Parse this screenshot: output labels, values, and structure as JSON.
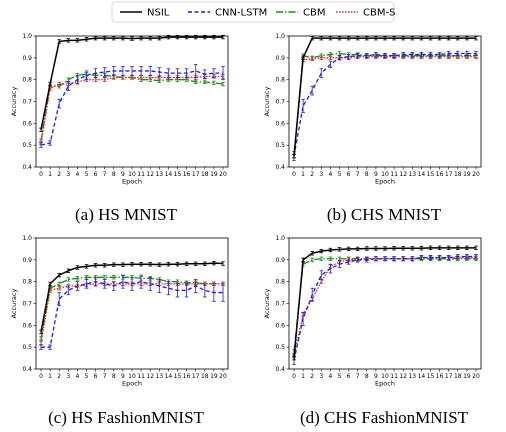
{
  "legend": [
    {
      "label": "NSIL",
      "color": "#000000",
      "dash": ""
    },
    {
      "label": "CNN-LSTM",
      "color": "#1f1fd6",
      "dash": "4,2.5"
    },
    {
      "label": "CBM",
      "color": "#1a8a1a",
      "dash": "7,2,1.5,2"
    },
    {
      "label": "CBM-S",
      "color": "#d62728",
      "dash": "1.5,1.5"
    }
  ],
  "chart_data": [
    {
      "type": "line",
      "caption": "(a) HS MNIST",
      "xlabel": "Epoch",
      "ylabel": "Accuracy",
      "x": [
        0,
        1,
        2,
        3,
        4,
        5,
        6,
        7,
        8,
        9,
        10,
        11,
        12,
        13,
        14,
        15,
        16,
        17,
        18,
        19,
        20
      ],
      "ylim": [
        0.4,
        1.0
      ],
      "yticks": [
        "0.4",
        "0.5",
        "0.6",
        "0.7",
        "0.8",
        "0.9",
        "1.0"
      ],
      "series": [
        {
          "name": "NSIL",
          "values": [
            0.57,
            0.78,
            0.975,
            0.98,
            0.98,
            0.985,
            0.99,
            0.99,
            0.99,
            0.99,
            0.988,
            0.99,
            0.99,
            0.99,
            0.995,
            0.995,
            0.995,
            0.995,
            0.995,
            0.995,
            0.995
          ]
        },
        {
          "name": "CNN-LSTM",
          "values": [
            0.5,
            0.51,
            0.69,
            0.77,
            0.8,
            0.82,
            0.83,
            0.835,
            0.84,
            0.84,
            0.84,
            0.84,
            0.84,
            0.835,
            0.83,
            0.83,
            0.83,
            0.84,
            0.825,
            0.83,
            0.83
          ],
          "err": [
            0.01,
            0.01,
            0.02,
            0.02,
            0.02,
            0.02,
            0.02,
            0.02,
            0.02,
            0.02,
            0.02,
            0.02,
            0.02,
            0.02,
            0.02,
            0.02,
            0.02,
            0.03,
            0.02,
            0.02,
            0.03
          ]
        },
        {
          "name": "CBM",
          "values": [
            0.52,
            0.77,
            0.77,
            0.8,
            0.82,
            0.825,
            0.82,
            0.82,
            0.815,
            0.81,
            0.81,
            0.8,
            0.8,
            0.795,
            0.8,
            0.8,
            0.8,
            0.79,
            0.79,
            0.785,
            0.78
          ]
        },
        {
          "name": "CBM-S",
          "values": [
            0.51,
            0.76,
            0.78,
            0.78,
            0.79,
            0.8,
            0.8,
            0.8,
            0.81,
            0.81,
            0.81,
            0.81,
            0.81,
            0.81,
            0.81,
            0.81,
            0.81,
            0.81,
            0.815,
            0.815,
            0.815
          ]
        }
      ]
    },
    {
      "type": "line",
      "caption": "(b) CHS MNIST",
      "xlabel": "Epoch",
      "ylabel": "Accuracy",
      "x": [
        0,
        1,
        2,
        3,
        4,
        5,
        6,
        7,
        8,
        9,
        10,
        11,
        12,
        13,
        14,
        15,
        16,
        17,
        18,
        19,
        20
      ],
      "ylim": [
        0.4,
        1.0
      ],
      "yticks": [
        "0.4",
        "0.5",
        "0.6",
        "0.7",
        "0.8",
        "0.9",
        "1.0"
      ],
      "series": [
        {
          "name": "NSIL",
          "values": [
            0.45,
            0.9,
            0.99,
            0.99,
            0.99,
            0.99,
            0.99,
            0.99,
            0.99,
            0.99,
            0.99,
            0.99,
            0.99,
            0.99,
            0.99,
            0.99,
            0.99,
            0.99,
            0.99,
            0.99,
            0.99
          ]
        },
        {
          "name": "CNN-LSTM",
          "values": [
            0.45,
            0.68,
            0.75,
            0.83,
            0.87,
            0.9,
            0.905,
            0.91,
            0.91,
            0.915,
            0.91,
            0.91,
            0.915,
            0.915,
            0.915,
            0.915,
            0.915,
            0.92,
            0.92,
            0.92,
            0.92
          ],
          "err": [
            0.02,
            0.03,
            0.02,
            0.02,
            0.015,
            0.01,
            0.01,
            0.01,
            0.01,
            0.01,
            0.01,
            0.01,
            0.01,
            0.01,
            0.01,
            0.01,
            0.01,
            0.01,
            0.01,
            0.01,
            0.01
          ]
        },
        {
          "name": "CBM",
          "values": [
            0.45,
            0.91,
            0.9,
            0.91,
            0.915,
            0.92,
            0.915,
            0.915,
            0.91,
            0.91,
            0.91,
            0.91,
            0.91,
            0.91,
            0.91,
            0.91,
            0.91,
            0.91,
            0.91,
            0.91,
            0.91
          ]
        },
        {
          "name": "CBM-S",
          "values": [
            0.45,
            0.89,
            0.895,
            0.9,
            0.9,
            0.9,
            0.9,
            0.905,
            0.905,
            0.905,
            0.905,
            0.905,
            0.905,
            0.905,
            0.905,
            0.905,
            0.905,
            0.905,
            0.905,
            0.905,
            0.905
          ]
        }
      ]
    },
    {
      "type": "line",
      "caption": "(c) HS FashionMNIST",
      "xlabel": "Epoch",
      "ylabel": "Accuracy",
      "x": [
        0,
        1,
        2,
        3,
        4,
        5,
        6,
        7,
        8,
        9,
        10,
        11,
        12,
        13,
        14,
        15,
        16,
        17,
        18,
        19,
        20
      ],
      "ylim": [
        0.4,
        1.0
      ],
      "yticks": [
        "0.4",
        "0.5",
        "0.6",
        "0.7",
        "0.8",
        "0.9",
        "1.0"
      ],
      "series": [
        {
          "name": "NSIL",
          "values": [
            0.57,
            0.79,
            0.83,
            0.85,
            0.865,
            0.87,
            0.875,
            0.875,
            0.878,
            0.878,
            0.88,
            0.88,
            0.88,
            0.878,
            0.88,
            0.88,
            0.882,
            0.882,
            0.882,
            0.885,
            0.883
          ]
        },
        {
          "name": "CNN-LSTM",
          "values": [
            0.5,
            0.5,
            0.72,
            0.76,
            0.78,
            0.79,
            0.8,
            0.79,
            0.78,
            0.8,
            0.79,
            0.8,
            0.79,
            0.78,
            0.77,
            0.76,
            0.76,
            0.78,
            0.76,
            0.75,
            0.75
          ],
          "err": [
            0.01,
            0.01,
            0.03,
            0.02,
            0.02,
            0.02,
            0.02,
            0.02,
            0.02,
            0.03,
            0.03,
            0.03,
            0.03,
            0.03,
            0.03,
            0.03,
            0.03,
            0.03,
            0.03,
            0.04,
            0.04
          ]
        },
        {
          "name": "CBM",
          "values": [
            0.54,
            0.77,
            0.79,
            0.81,
            0.815,
            0.82,
            0.82,
            0.82,
            0.82,
            0.82,
            0.82,
            0.815,
            0.815,
            0.81,
            0.8,
            0.8,
            0.795,
            0.795,
            0.79,
            0.79,
            0.79
          ]
        },
        {
          "name": "CBM-S",
          "values": [
            0.52,
            0.76,
            0.77,
            0.78,
            0.78,
            0.785,
            0.79,
            0.79,
            0.79,
            0.79,
            0.79,
            0.79,
            0.79,
            0.79,
            0.79,
            0.79,
            0.79,
            0.79,
            0.79,
            0.79,
            0.79
          ]
        }
      ]
    },
    {
      "type": "line",
      "caption": "(d) CHS FashionMNIST",
      "xlabel": "Epoch",
      "ylabel": "Accuracy",
      "x": [
        0,
        1,
        2,
        3,
        4,
        5,
        6,
        7,
        8,
        9,
        10,
        11,
        12,
        13,
        14,
        15,
        16,
        17,
        18,
        19,
        20
      ],
      "ylim": [
        0.4,
        1.0
      ],
      "yticks": [
        "0.4",
        "0.5",
        "0.6",
        "0.7",
        "0.8",
        "0.9",
        "1.0"
      ],
      "series": [
        {
          "name": "NSIL",
          "values": [
            0.45,
            0.9,
            0.93,
            0.94,
            0.945,
            0.948,
            0.95,
            0.95,
            0.952,
            0.952,
            0.952,
            0.953,
            0.953,
            0.953,
            0.953,
            0.955,
            0.955,
            0.955,
            0.955,
            0.955,
            0.955
          ]
        },
        {
          "name": "CNN-LSTM",
          "values": [
            0.44,
            0.63,
            0.74,
            0.83,
            0.86,
            0.88,
            0.89,
            0.9,
            0.9,
            0.905,
            0.905,
            0.905,
            0.905,
            0.905,
            0.91,
            0.91,
            0.91,
            0.91,
            0.915,
            0.915,
            0.915
          ],
          "err": [
            0.02,
            0.03,
            0.03,
            0.02,
            0.02,
            0.015,
            0.01,
            0.01,
            0.01,
            0.01,
            0.01,
            0.01,
            0.01,
            0.01,
            0.01,
            0.01,
            0.01,
            0.01,
            0.01,
            0.01,
            0.01
          ]
        },
        {
          "name": "CBM",
          "values": [
            0.48,
            0.88,
            0.9,
            0.905,
            0.905,
            0.905,
            0.905,
            0.905,
            0.905,
            0.905,
            0.905,
            0.905,
            0.905,
            0.905,
            0.905,
            0.905,
            0.905,
            0.905,
            0.905,
            0.905,
            0.905
          ]
        },
        {
          "name": "CBM-S",
          "values": [
            0.46,
            0.65,
            0.72,
            0.8,
            0.87,
            0.89,
            0.9,
            0.9,
            0.905,
            0.905,
            0.905,
            0.905,
            0.905,
            0.905,
            0.91,
            0.91,
            0.91,
            0.91,
            0.91,
            0.91,
            0.91
          ]
        }
      ]
    }
  ]
}
